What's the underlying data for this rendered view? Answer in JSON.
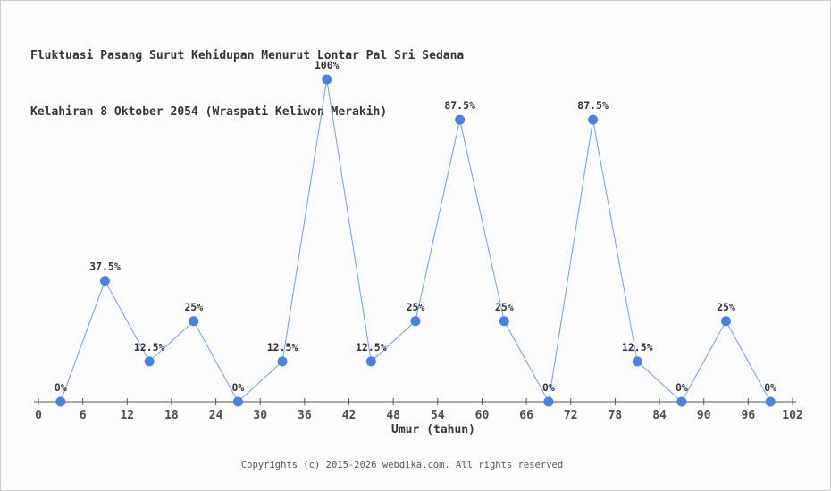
{
  "window": {
    "background": "#fdfdfd",
    "border_color": "#cccccc"
  },
  "chart_data": {
    "type": "line",
    "title_line1": "Fluktuasi Pasang Surut Kehidupan Menurut Lontar Pal Sri Sedana",
    "title_line2": "Kelahiran 8 Oktober 2054 (Wraspati Keliwon Merakih)",
    "xlabel": "Umur (tahun)",
    "x": [
      3,
      9,
      15,
      21,
      27,
      33,
      39,
      45,
      51,
      57,
      63,
      69,
      75,
      81,
      87,
      93,
      99
    ],
    "values": [
      0,
      37.5,
      12.5,
      25,
      0,
      12.5,
      100,
      12.5,
      25,
      87.5,
      25,
      0,
      87.5,
      12.5,
      0,
      25,
      0
    ],
    "point_labels": [
      "0%",
      "37.5%",
      "12.5%",
      "25%",
      "0%",
      "12.5%",
      "100%",
      "12.5%",
      "25%",
      "87.5%",
      "25%",
      "0%",
      "87.5%",
      "12.5%",
      "0%",
      "25%",
      "0%"
    ],
    "x_ticks": [
      0,
      6,
      12,
      18,
      24,
      30,
      36,
      42,
      48,
      54,
      60,
      66,
      72,
      78,
      84,
      90,
      96,
      102
    ],
    "xlim": [
      0,
      102
    ],
    "ylim": [
      0,
      100
    ],
    "grid": false,
    "legend_position": "none",
    "line_color": "#6d9eeb",
    "marker_color": "#4a82e4",
    "axis_color": "#555555",
    "tick_label_color": "#4d4d4d",
    "point_label_color": "#333333"
  },
  "footer": {
    "text": "Copyrights (c) 2015-2026 webdika.com. All rights reserved"
  }
}
